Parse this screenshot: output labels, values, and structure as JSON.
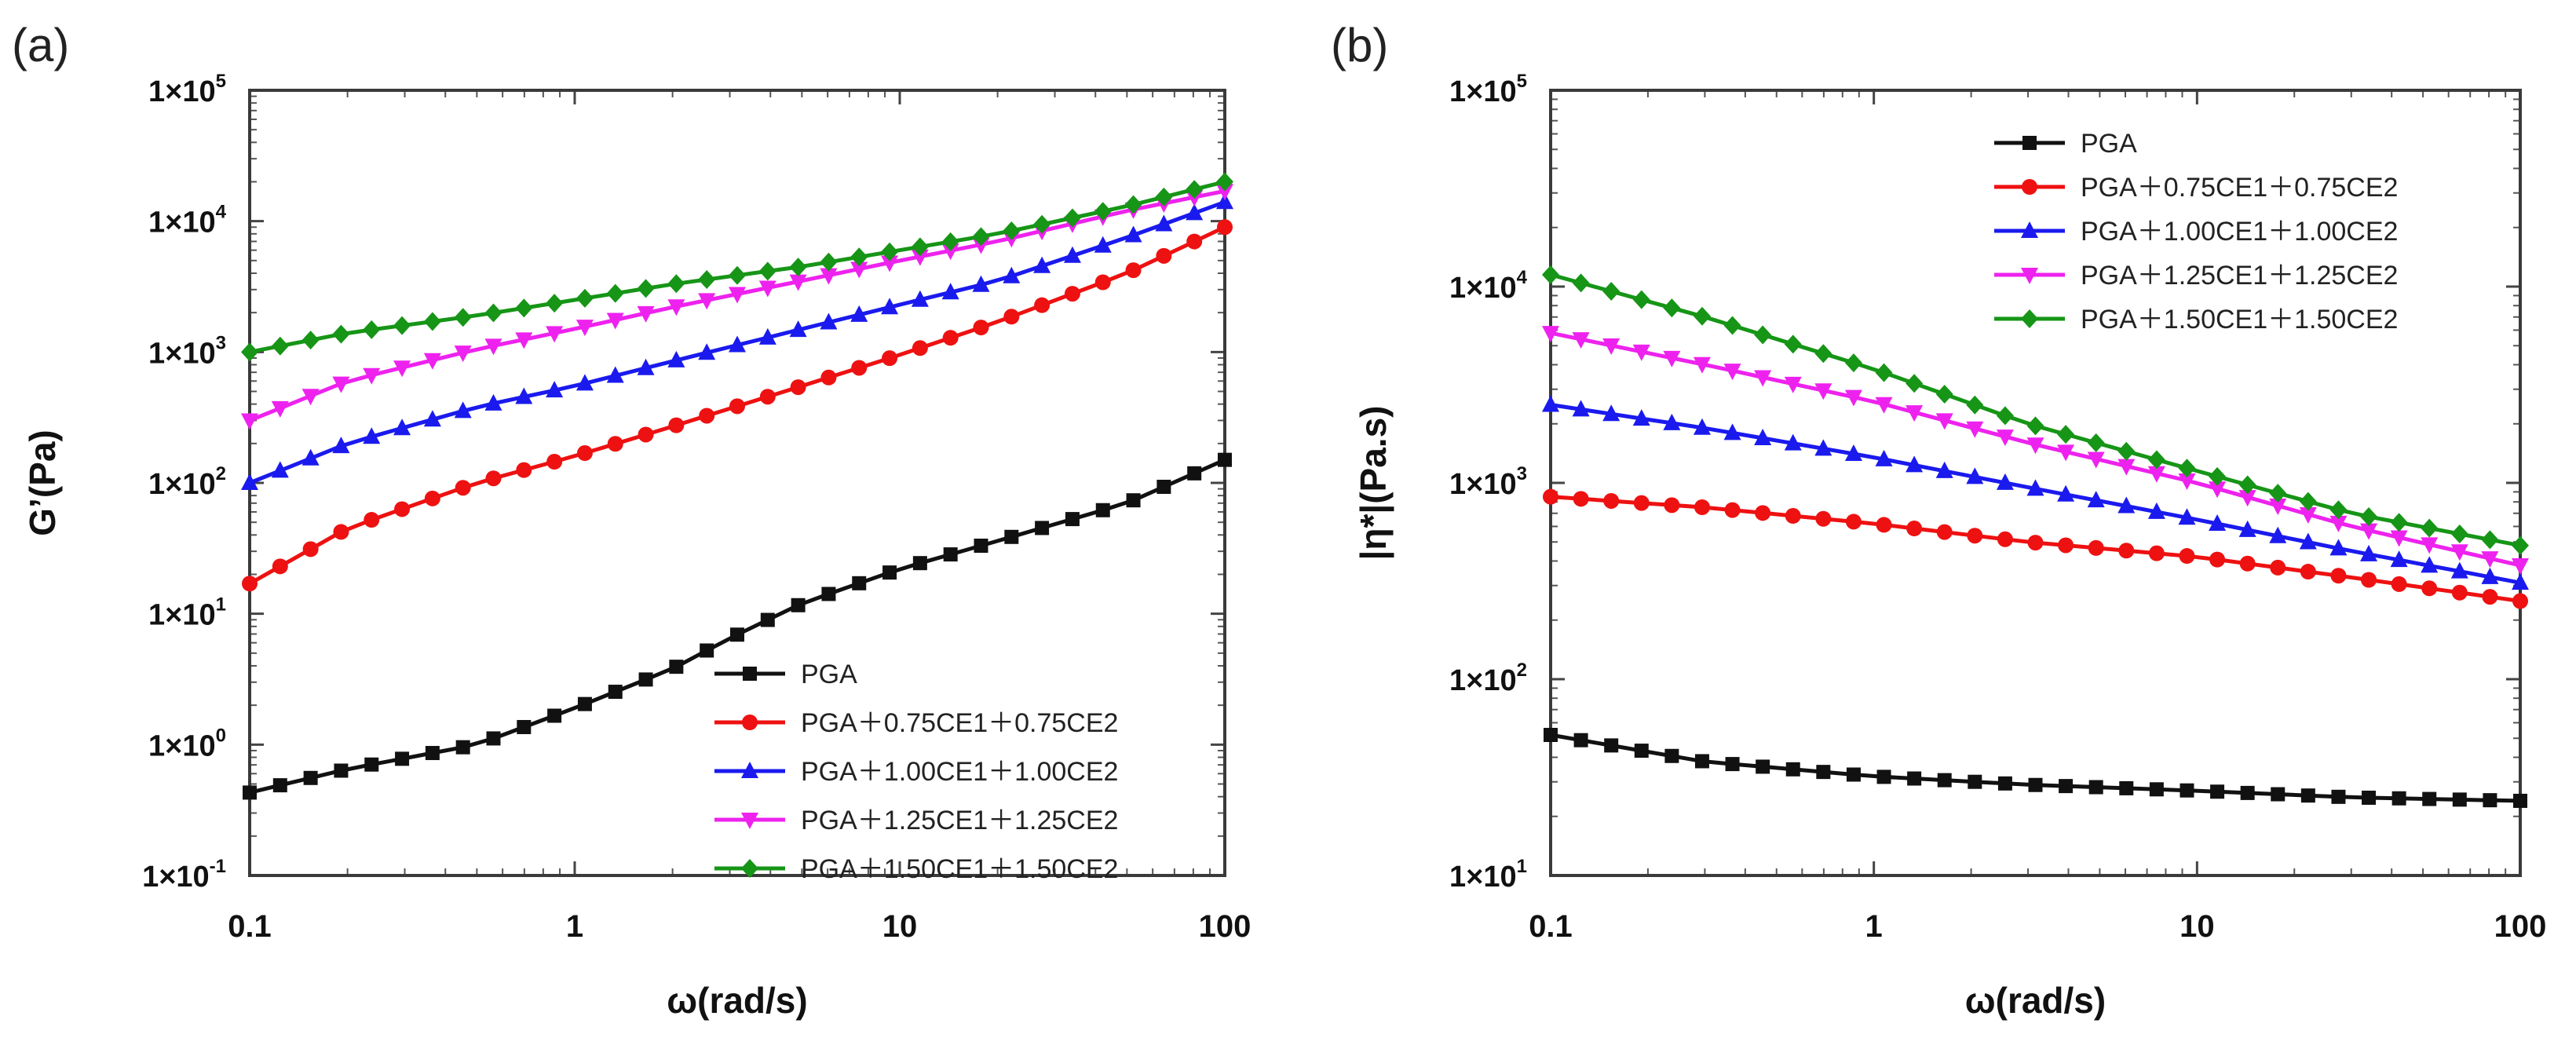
{
  "chart_data": [
    {
      "type": "line",
      "panel_label": "(a)",
      "xscale": "log",
      "yscale": "log",
      "xlim": [
        0.1,
        100
      ],
      "ylim": [
        0.1,
        100000
      ],
      "xlabel": "ω(rad/s)",
      "ylabel": "G’(Pa)",
      "x_ticks": [
        "0.1",
        "1",
        "10",
        "100"
      ],
      "y_ticks": [
        {
          "base": "1×10",
          "exp": "5"
        },
        {
          "base": "1×10",
          "exp": "4"
        },
        {
          "base": "1×10",
          "exp": "3"
        },
        {
          "base": "1×10",
          "exp": "2"
        },
        {
          "base": "1×10",
          "exp": "1"
        },
        {
          "base": "1×10",
          "exp": "0"
        },
        {
          "base": "1×10",
          "exp": "-1"
        }
      ],
      "legend_position": "bottom-right",
      "series": [
        {
          "name": "PGA",
          "color": "#111111",
          "marker": "square",
          "anchors_x": [
            0.1,
            0.2,
            0.5,
            1,
            2,
            3,
            5,
            10,
            20,
            50,
            100
          ],
          "anchors_y": [
            0.43,
            0.65,
            1.0,
            1.9,
            3.8,
            6.5,
            12,
            22,
            36,
            70,
            150
          ]
        },
        {
          "name": "PGA＋0.75CE1＋0.75CE2",
          "color": "#ee1111",
          "marker": "circle",
          "anchors_x": [
            0.1,
            0.2,
            0.5,
            1,
            2,
            5,
            10,
            20,
            50,
            100
          ],
          "anchors_y": [
            17,
            45,
            100,
            160,
            270,
            550,
            950,
            1700,
            4000,
            9000
          ]
        },
        {
          "name": "PGA＋1.00CE1＋1.00CE2",
          "color": "#1a1aee",
          "marker": "triangle-up",
          "anchors_x": [
            0.1,
            0.2,
            0.5,
            1,
            2,
            5,
            10,
            20,
            50,
            100
          ],
          "anchors_y": [
            100,
            200,
            380,
            550,
            850,
            1500,
            2300,
            3500,
            7500,
            14000
          ]
        },
        {
          "name": "PGA＋1.25CE1＋1.25CE2",
          "color": "#ee22ee",
          "marker": "triangle-down",
          "anchors_x": [
            0.1,
            0.2,
            0.5,
            1,
            2,
            5,
            10,
            20,
            50,
            100
          ],
          "anchors_y": [
            300,
            600,
            1050,
            1500,
            2200,
            3500,
            5000,
            7000,
            12000,
            17000
          ]
        },
        {
          "name": "PGA＋1.50CE1＋1.50CE2",
          "color": "#169516",
          "marker": "diamond",
          "anchors_x": [
            0.1,
            0.2,
            0.5,
            1,
            2,
            5,
            10,
            20,
            50,
            100
          ],
          "anchors_y": [
            1000,
            1400,
            1900,
            2500,
            3300,
            4500,
            6000,
            8000,
            13000,
            20000
          ]
        }
      ]
    },
    {
      "type": "line",
      "panel_label": "(b)",
      "xscale": "log",
      "yscale": "log",
      "xlim": [
        0.1,
        100
      ],
      "ylim": [
        10,
        100000
      ],
      "xlabel": "ω(rad/s)",
      "ylabel": "|η*|(Pa.s)",
      "x_ticks": [
        "0.1",
        "1",
        "10",
        "100"
      ],
      "y_ticks": [
        {
          "base": "1×10",
          "exp": "5"
        },
        {
          "base": "1×10",
          "exp": "4"
        },
        {
          "base": "1×10",
          "exp": "3"
        },
        {
          "base": "1×10",
          "exp": "2"
        },
        {
          "base": "1×10",
          "exp": "1"
        }
      ],
      "legend_position": "top-right",
      "series": [
        {
          "name": "PGA",
          "color": "#111111",
          "marker": "square",
          "anchors_x": [
            0.1,
            0.3,
            1,
            3,
            10,
            30,
            100
          ],
          "anchors_y": [
            52,
            38,
            32,
            29,
            27,
            25,
            24
          ]
        },
        {
          "name": "PGA＋0.75CE1＋0.75CE2",
          "color": "#ee1111",
          "marker": "circle",
          "anchors_x": [
            0.1,
            0.3,
            1,
            3,
            10,
            30,
            100
          ],
          "anchors_y": [
            850,
            750,
            620,
            500,
            420,
            330,
            250
          ]
        },
        {
          "name": "PGA＋1.00CE1＋1.00CE2",
          "color": "#1a1aee",
          "marker": "triangle-up",
          "anchors_x": [
            0.1,
            0.3,
            1,
            3,
            10,
            30,
            100
          ],
          "anchors_y": [
            2500,
            1900,
            1350,
            950,
            650,
            450,
            310
          ]
        },
        {
          "name": "PGA＋1.25CE1＋1.25CE2",
          "color": "#ee22ee",
          "marker": "triangle-down",
          "anchors_x": [
            0.1,
            0.3,
            1,
            3,
            10,
            30,
            100
          ],
          "anchors_y": [
            5800,
            4000,
            2600,
            1600,
            1000,
            600,
            380
          ]
        },
        {
          "name": "PGA＋1.50CE1＋1.50CE2",
          "color": "#169516",
          "marker": "diamond",
          "anchors_x": [
            0.1,
            0.3,
            1,
            3,
            10,
            30,
            100
          ],
          "anchors_y": [
            11500,
            7000,
            3800,
            2000,
            1150,
            700,
            480
          ]
        }
      ]
    }
  ]
}
